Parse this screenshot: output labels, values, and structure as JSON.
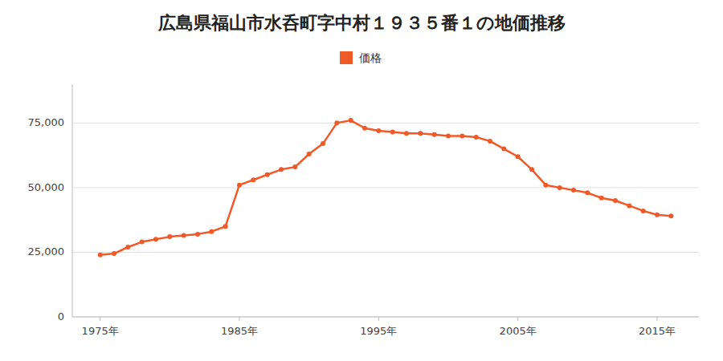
{
  "chart_data": {
    "type": "line",
    "title": "広島県福山市水呑町字中村１９３５番１の地価推移",
    "x": [
      1975,
      1976,
      1977,
      1978,
      1979,
      1980,
      1981,
      1982,
      1983,
      1984,
      1985,
      1986,
      1987,
      1988,
      1989,
      1990,
      1991,
      1992,
      1993,
      1994,
      1995,
      1996,
      1997,
      1998,
      1999,
      2000,
      2001,
      2002,
      2003,
      2004,
      2005,
      2006,
      2007,
      2008,
      2009,
      2010,
      2011,
      2012,
      2013,
      2014,
      2015,
      2016
    ],
    "series": [
      {
        "name": "価格",
        "color": "#f05a28",
        "values": [
          24000,
          24500,
          27000,
          29000,
          30000,
          31000,
          31500,
          32000,
          33000,
          35000,
          51000,
          53000,
          55000,
          57000,
          58000,
          63000,
          67000,
          75000,
          76000,
          73000,
          72000,
          71500,
          71000,
          71000,
          70500,
          70000,
          70000,
          69500,
          68000,
          65000,
          62000,
          57000,
          51000,
          50000,
          49000,
          48000,
          46000,
          45000,
          43000,
          41000,
          39500,
          39000
        ]
      }
    ],
    "xlim": [
      1973,
      2018
    ],
    "xticks": [
      {
        "value": 1975,
        "label": "1975年"
      },
      {
        "value": 1985,
        "label": "1985年"
      },
      {
        "value": 1995,
        "label": "1995年"
      },
      {
        "value": 2005,
        "label": "2005年"
      },
      {
        "value": 2015,
        "label": "2015年"
      }
    ],
    "ylim": [
      0,
      90000
    ],
    "yticks": [
      0,
      {
        "value": 25000,
        "label": "25,000"
      },
      {
        "value": 50000,
        "label": "50,000"
      },
      {
        "value": 75000,
        "label": "75,000"
      }
    ],
    "grid": true,
    "legend": "top",
    "marker": "circle"
  }
}
